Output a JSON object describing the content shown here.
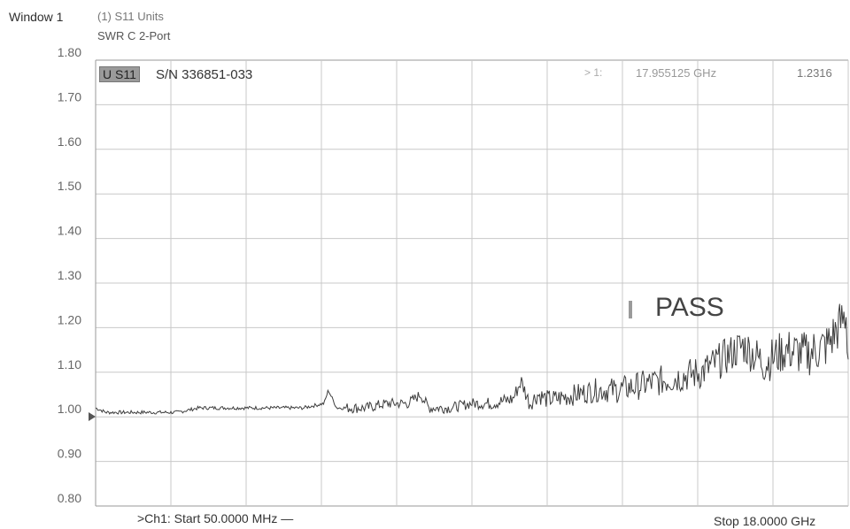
{
  "window": {
    "title": "Window 1",
    "trace_title": "(1) S11 Units",
    "trace_format": "SWR C 2-Port"
  },
  "marker": {
    "tag": "U S11",
    "serial": "S/N 336851-033",
    "arrow": "> 1:",
    "frequency": "17.955125 GHz",
    "value": "1.2316"
  },
  "status": {
    "result": "PASS"
  },
  "footer": {
    "start": ">Ch1: Start  50.0000 MHz —",
    "stop": "Stop  18.0000 GHz"
  },
  "colors": {
    "trace": "#3d3d3d",
    "grid": "#c8c8c8",
    "marker_box": "#9a9a9a"
  },
  "chart_data": {
    "type": "line",
    "ylim": [
      0.8,
      1.8
    ],
    "yticks": [
      "1.80",
      "1.70",
      "1.60",
      "1.50",
      "1.40",
      "1.30",
      "1.20",
      "1.10",
      "1.00",
      "0.90",
      "0.80"
    ],
    "xlim_ghz": [
      0.05,
      18.0
    ],
    "x_divisions": 10,
    "y_divisions": 10,
    "grid": true,
    "reference_level": 1.0,
    "series": [
      {
        "x_ghz": [
          0.05,
          0.3,
          0.6,
          1.0,
          1.5,
          2.0,
          2.5,
          3.0,
          3.5,
          4.0,
          4.5,
          5.0,
          5.5,
          5.6,
          5.8,
          6.0,
          6.5,
          7.0,
          7.5,
          7.8,
          8.0,
          8.5,
          9.0,
          9.5,
          10.0,
          10.2,
          10.4,
          10.6,
          10.8,
          11.0,
          11.5,
          12.0,
          12.5,
          13.0,
          13.5,
          14.0,
          14.5,
          15.0,
          15.5,
          16.0,
          16.5,
          17.0,
          17.5,
          17.95,
          18.0
        ],
        "swr": [
          1.02,
          1.01,
          1.01,
          1.01,
          1.01,
          1.01,
          1.02,
          1.02,
          1.02,
          1.02,
          1.02,
          1.02,
          1.03,
          1.06,
          1.02,
          1.02,
          1.02,
          1.03,
          1.03,
          1.05,
          1.02,
          1.02,
          1.03,
          1.03,
          1.04,
          1.08,
          1.03,
          1.05,
          1.04,
          1.04,
          1.05,
          1.06,
          1.06,
          1.07,
          1.08,
          1.09,
          1.1,
          1.13,
          1.16,
          1.12,
          1.15,
          1.14,
          1.16,
          1.23,
          1.13
        ]
      }
    ]
  }
}
